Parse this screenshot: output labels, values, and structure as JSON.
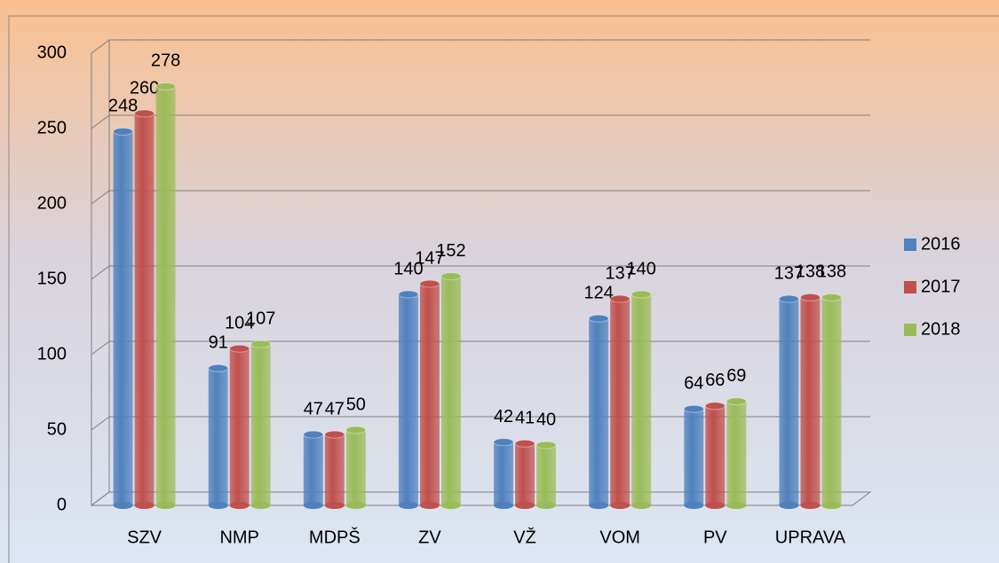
{
  "chart_data": {
    "type": "bar",
    "categories": [
      "SZV",
      "NMP",
      "MDPŠ",
      "ZV",
      "VŽ",
      "VOM",
      "PV",
      "UPRAVA"
    ],
    "series": [
      {
        "name": "2016",
        "color": "#4f81bd",
        "values": [
          248,
          91,
          47,
          140,
          42,
          124,
          64,
          137
        ]
      },
      {
        "name": "2017",
        "color": "#c0504d",
        "values": [
          260,
          104,
          47,
          147,
          41,
          137,
          66,
          138
        ]
      },
      {
        "name": "2018",
        "color": "#9bbb59",
        "values": [
          278,
          107,
          50,
          152,
          40,
          140,
          69,
          138
        ]
      }
    ],
    "ylim": [
      0,
      300
    ],
    "yticks": [
      0,
      50,
      100,
      150,
      200,
      250,
      300
    ],
    "grid": true,
    "legend": "right"
  }
}
